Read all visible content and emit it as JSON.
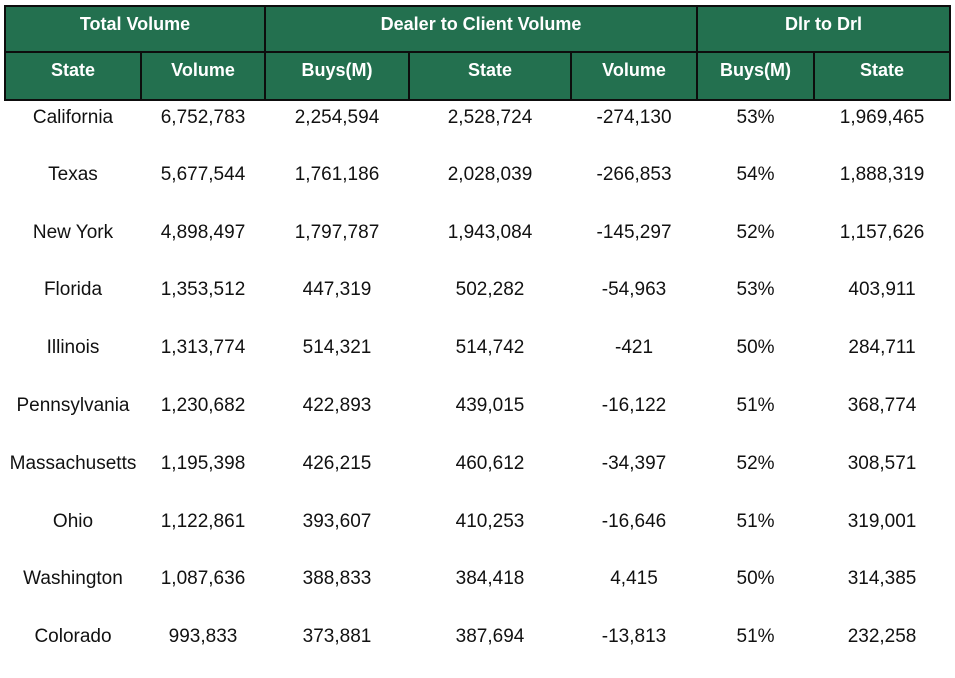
{
  "group_headers": [
    "Total Volume",
    "Dealer to Client Volume",
    "Dlr to Drl"
  ],
  "column_headers": [
    "State",
    "Volume",
    "Buys(M)",
    "State",
    "Volume",
    "Buys(M)",
    "State"
  ],
  "rows": [
    [
      "California",
      "6,752,783",
      "2,254,594",
      "2,528,724",
      "-274,130",
      "53%",
      "1,969,465"
    ],
    [
      "Texas",
      "5,677,544",
      "1,761,186",
      "2,028,039",
      "-266,853",
      "54%",
      "1,888,319"
    ],
    [
      "New York",
      "4,898,497",
      "1,797,787",
      "1,943,084",
      "-145,297",
      "52%",
      "1,157,626"
    ],
    [
      "Florida",
      "1,353,512",
      "447,319",
      "502,282",
      "-54,963",
      "53%",
      "403,911"
    ],
    [
      "Illinois",
      "1,313,774",
      "514,321",
      "514,742",
      "-421",
      "50%",
      "284,711"
    ],
    [
      "Pennsylvania",
      "1,230,682",
      "422,893",
      "439,015",
      "-16,122",
      "51%",
      "368,774"
    ],
    [
      "Massachusetts",
      "1,195,398",
      "426,215",
      "460,612",
      "-34,397",
      "52%",
      "308,571"
    ],
    [
      "Ohio",
      "1,122,861",
      "393,607",
      "410,253",
      "-16,646",
      "51%",
      "319,001"
    ],
    [
      "Washington",
      "1,087,636",
      "388,833",
      "384,418",
      "4,415",
      "50%",
      "314,385"
    ],
    [
      "Colorado",
      "993,833",
      "373,881",
      "387,694",
      "-13,813",
      "51%",
      "232,258"
    ]
  ],
  "colors": {
    "header_bg": "#23704f",
    "header_text": "#ffffff",
    "border": "#0d0d0d"
  }
}
